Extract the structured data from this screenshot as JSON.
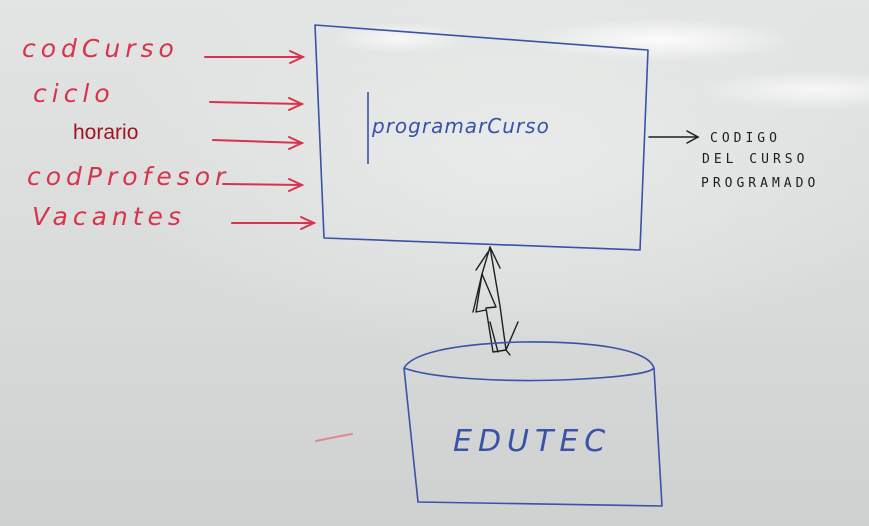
{
  "inputs": [
    {
      "label": "codCurso"
    },
    {
      "label": "ciclo"
    },
    {
      "label": "horario"
    },
    {
      "label": "codProfesor"
    },
    {
      "label": "Vacantes"
    }
  ],
  "process": {
    "label": "programarCurso"
  },
  "output": {
    "lines": [
      "CODIGO",
      "DEL CURSO",
      "PROGRAMADO"
    ]
  },
  "database": {
    "label": "EDUTEC"
  },
  "colors": {
    "input_marker": "#d9334b",
    "typed_text": "#a3121f",
    "process_marker": "#3a52a8",
    "output_marker": "#1e1e22"
  }
}
